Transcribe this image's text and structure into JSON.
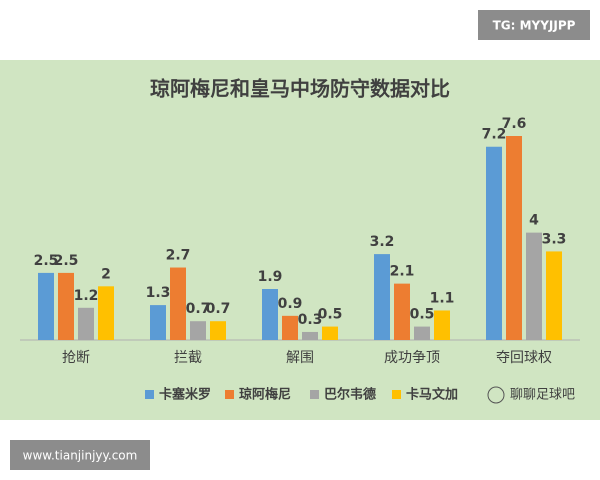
{
  "badge": "TG: MYYJJPP",
  "watermark": "聊聊足球吧",
  "website": "www.tianjinjyy.com",
  "chart_data": {
    "type": "bar",
    "title": "琼阿梅尼和皇马中场防守数据对比",
    "categories": [
      "抢断",
      "拦截",
      "解围",
      "成功争顶",
      "夺回球权"
    ],
    "series": [
      {
        "name": "卡塞米罗",
        "color": "#5b9bd5",
        "values": [
          2.5,
          1.3,
          1.9,
          3.2,
          7.2
        ]
      },
      {
        "name": "琼阿梅尼",
        "color": "#ed7d31",
        "values": [
          2.5,
          2.7,
          0.9,
          2.1,
          7.6
        ]
      },
      {
        "name": "巴尔韦德",
        "color": "#a5a5a5",
        "values": [
          1.2,
          0.7,
          0.3,
          0.5,
          4
        ]
      },
      {
        "name": "卡马文加",
        "color": "#ffc000",
        "values": [
          2,
          0.7,
          0.5,
          1.1,
          3.3
        ]
      }
    ],
    "legend": "bottom"
  }
}
